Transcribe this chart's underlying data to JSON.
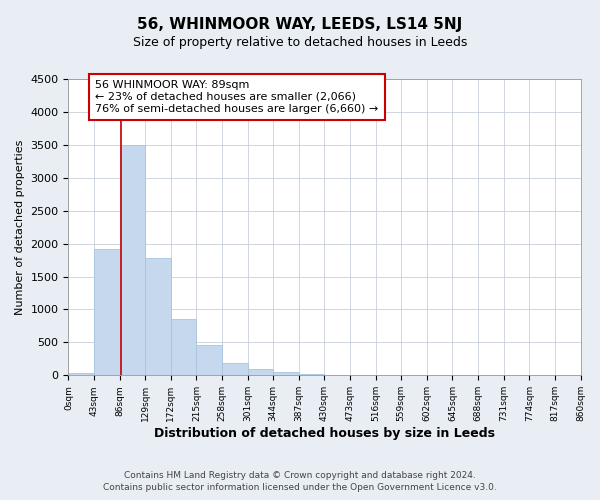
{
  "title": "56, WHINMOOR WAY, LEEDS, LS14 5NJ",
  "subtitle": "Size of property relative to detached houses in Leeds",
  "xlabel": "Distribution of detached houses by size in Leeds",
  "ylabel": "Number of detached properties",
  "bar_edges": [
    0,
    43,
    86,
    129,
    172,
    215,
    258,
    301,
    344,
    387,
    430,
    473,
    516,
    559,
    602,
    645,
    688,
    731,
    774,
    817,
    860
  ],
  "bar_heights": [
    30,
    1920,
    3500,
    1775,
    850,
    460,
    185,
    90,
    50,
    20,
    5,
    0,
    0,
    0,
    0,
    0,
    0,
    0,
    0,
    0
  ],
  "bar_color": "#c5d8ed",
  "bar_edgecolor": "#a8c4e0",
  "property_line_x": 89,
  "property_line_color": "#cc0000",
  "ylim": [
    0,
    4500
  ],
  "yticks": [
    0,
    500,
    1000,
    1500,
    2000,
    2500,
    3000,
    3500,
    4000,
    4500
  ],
  "xtick_labels": [
    "0sqm",
    "43sqm",
    "86sqm",
    "129sqm",
    "172sqm",
    "215sqm",
    "258sqm",
    "301sqm",
    "344sqm",
    "387sqm",
    "430sqm",
    "473sqm",
    "516sqm",
    "559sqm",
    "602sqm",
    "645sqm",
    "688sqm",
    "731sqm",
    "774sqm",
    "817sqm",
    "860sqm"
  ],
  "annotation_line1": "56 WHINMOOR WAY: 89sqm",
  "annotation_line2": "← 23% of detached houses are smaller (2,066)",
  "annotation_line3": "76% of semi-detached houses are larger (6,660) →",
  "footer_line1": "Contains HM Land Registry data © Crown copyright and database right 2024.",
  "footer_line2": "Contains public sector information licensed under the Open Government Licence v3.0.",
  "background_color": "#e8eef4",
  "plot_background_color": "#ffffff",
  "grid_color": "#c8d0da"
}
